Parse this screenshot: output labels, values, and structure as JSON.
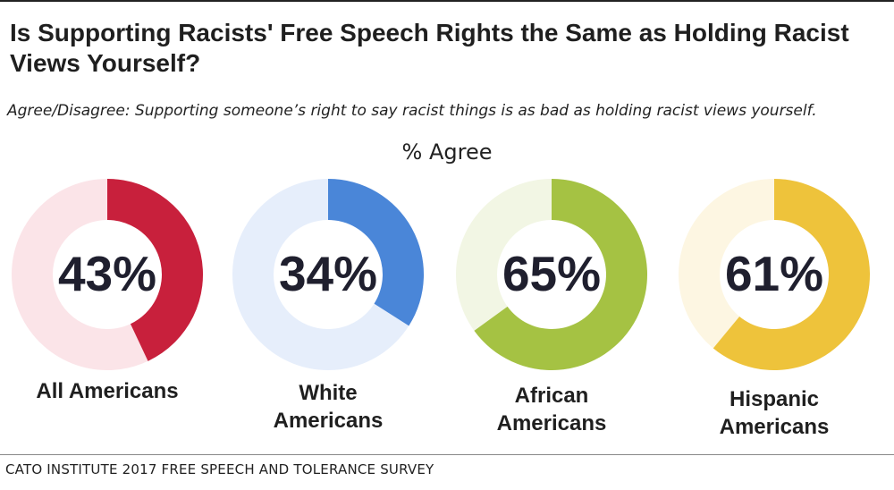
{
  "title": "Is Supporting Racists' Free Speech Rights the Same as Holding Racist Views Yourself?",
  "subtitle": "Agree/Disagree: Supporting someone’s right to say racist things is as bad as holding racist views yourself.",
  "metric_label": "% Agree",
  "source": "CATO INSTITUTE 2017 FREE SPEECH AND TOLERANCE SURVEY",
  "chart_data": {
    "type": "pie",
    "title": "Is Supporting Racists' Free Speech Rights the Same as Holding Racist Views Yourself?",
    "subtitle": "% Agree",
    "unit": "%",
    "series": [
      {
        "name": "All Americans",
        "value": 43,
        "label": "43%",
        "color": "#c8203c",
        "track_color": "#fbe4e8",
        "label_lines": [
          "All Americans"
        ]
      },
      {
        "name": "White Americans",
        "value": 34,
        "label": "34%",
        "color": "#4a86d8",
        "track_color": "#e6eefb",
        "label_lines": [
          "White",
          "Americans"
        ]
      },
      {
        "name": "African Americans",
        "value": 65,
        "label": "65%",
        "color": "#a5c243",
        "track_color": "#f2f6e4",
        "label_lines": [
          "African",
          "Americans"
        ]
      },
      {
        "name": "Hispanic Americans",
        "value": 61,
        "label": "61%",
        "color": "#eec33b",
        "track_color": "#fdf6e2",
        "label_lines": [
          "Hispanic",
          "Americans"
        ]
      }
    ]
  }
}
